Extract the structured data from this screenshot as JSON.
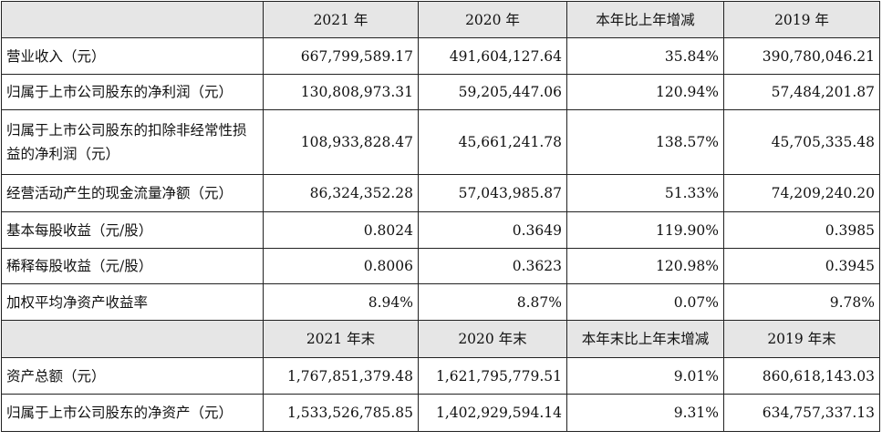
{
  "header_1": {
    "blank": "",
    "c1": "2021 年",
    "c2": "2020 年",
    "c3": "本年比上年增减",
    "c4": "2019 年"
  },
  "rows_1": [
    {
      "label": "营业收入（元）",
      "v2021": "667,799,589.17",
      "v2020": "491,604,127.64",
      "change": "35.84%",
      "v2019": "390,780,046.21"
    },
    {
      "label": "归属于上市公司股东的净利润（元）",
      "v2021": "130,808,973.31",
      "v2020": "59,205,447.06",
      "change": "120.94%",
      "v2019": "57,484,201.87"
    },
    {
      "label": "归属于上市公司股东的扣除非经常性损益的净利润（元）",
      "v2021": "108,933,828.47",
      "v2020": "45,661,241.78",
      "change": "138.57%",
      "v2019": "45,705,335.48"
    },
    {
      "label": "经营活动产生的现金流量净额（元）",
      "v2021": "86,324,352.28",
      "v2020": "57,043,985.87",
      "change": "51.33%",
      "v2019": "74,209,240.20"
    },
    {
      "label": "基本每股收益（元/股）",
      "v2021": "0.8024",
      "v2020": "0.3649",
      "change": "119.90%",
      "v2019": "0.3985"
    },
    {
      "label": "稀释每股收益（元/股）",
      "v2021": "0.8006",
      "v2020": "0.3623",
      "change": "120.98%",
      "v2019": "0.3945"
    },
    {
      "label": "加权平均净资产收益率",
      "v2021": "8.94%",
      "v2020": "8.87%",
      "change": "0.07%",
      "v2019": "9.78%"
    }
  ],
  "header_2": {
    "blank": "",
    "c1": "2021 年末",
    "c2": "2020 年末",
    "c3": "本年末比上年末增减",
    "c4": "2019 年末"
  },
  "rows_2": [
    {
      "label": "资产总额（元）",
      "v2021": "1,767,851,379.48",
      "v2020": "1,621,795,779.51",
      "change": "9.01%",
      "v2019": "860,618,143.03"
    },
    {
      "label": "归属于上市公司股东的净资产（元）",
      "v2021": "1,533,526,785.85",
      "v2020": "1,402,929,594.14",
      "change": "9.31%",
      "v2019": "634,757,337.13"
    }
  ]
}
